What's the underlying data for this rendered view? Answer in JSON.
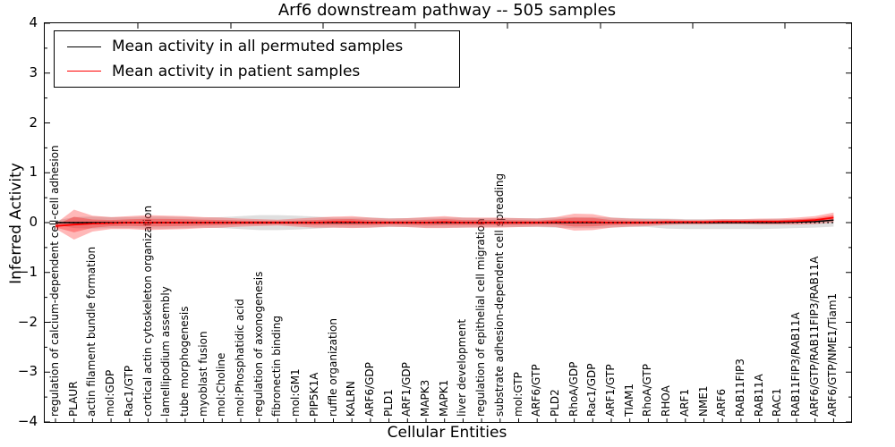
{
  "title": "Arf6 downstream pathway -- 505 samples",
  "axes": {
    "x_label": "Cellular Entities",
    "y_label": "Inferred Activity",
    "y_ticks": [
      {
        "label": "4",
        "value": 4
      },
      {
        "label": "3",
        "value": 3
      },
      {
        "label": "2",
        "value": 2
      },
      {
        "label": "1",
        "value": 1
      },
      {
        "label": "0",
        "value": 0
      },
      {
        "label": "−1",
        "value": -1
      },
      {
        "label": "−2",
        "value": -2
      },
      {
        "label": "−3",
        "value": -3
      },
      {
        "label": "−4",
        "value": -4
      }
    ]
  },
  "legend": {
    "items": [
      {
        "label": "Mean activity in all permuted samples",
        "color": "#000000"
      },
      {
        "label": "Mean activity in patient samples",
        "color": "#ff0000"
      }
    ]
  },
  "colors": {
    "patient_line": "#ff0000",
    "patient_band": "#ff0000",
    "permuted_line": "#000000",
    "permuted_band": "#aaaaaa",
    "zero_line": "#000000"
  },
  "chart_data": {
    "type": "line",
    "title": "Arf6 downstream pathway -- 505 samples",
    "xlabel": "Cellular Entities",
    "ylabel": "Inferred Activity",
    "ylim": [
      -4,
      4
    ],
    "grid": false,
    "legend_position": "upper left",
    "zero_reference_line": "dotted",
    "categories": [
      "regulation of calcium-dependent cell-cell adhesion",
      "PLAUR",
      "actin filament bundle formation",
      "mol:GDP",
      "Rac1/GTP",
      "cortical actin cytoskeleton organization",
      "lamellipodium assembly",
      "tube morphogenesis",
      "myoblast fusion",
      "mol:Choline",
      "mol:Phosphatidic acid",
      "regulation of axonogenesis",
      "fibronectin binding",
      "mol:GM1",
      "PIP5K1A",
      "ruffle organization",
      "KALRN",
      "ARF6/GDP",
      "PLD1",
      "ARF1/GDP",
      "MAPK3",
      "MAPK1",
      "liver development",
      "regulation of epithelial cell migration",
      "substrate adhesion-dependent cell spreading",
      "mol:GTP",
      "ARF6/GTP",
      "PLD2",
      "RhoA/GDP",
      "Rac1/GDP",
      "ARF1/GTP",
      "TIAM1",
      "RhoA/GTP",
      "RHOA",
      "ARF1",
      "NME1",
      "ARF6",
      "RAB11FIP3",
      "RAB11A",
      "RAC1",
      "RAB11FIP3/RAB11A",
      "ARF6/GTP/RAB11FIP3/RAB11A",
      "ARF6/GTP/NME1/Tiam1"
    ],
    "series": [
      {
        "name": "Mean activity in all permuted samples",
        "color": "#000000",
        "values": [
          0,
          0,
          0,
          0,
          0,
          0,
          0,
          0,
          0,
          0,
          0,
          0,
          0,
          0,
          0,
          0,
          0,
          0,
          0,
          0,
          0,
          0,
          0,
          0,
          0,
          0,
          0,
          0,
          0,
          0,
          0,
          0,
          0,
          0,
          0,
          0,
          0,
          0,
          0,
          0,
          0.01,
          0.02,
          0.05
        ],
        "band_center": [
          0,
          0,
          0,
          0,
          0,
          0,
          0,
          0,
          0,
          0,
          0,
          0,
          0,
          0,
          0,
          0,
          0,
          0,
          0,
          0,
          0,
          0,
          0,
          0,
          0,
          0,
          0,
          0,
          0,
          0,
          0,
          0,
          0,
          -0.02,
          -0.03,
          -0.03,
          -0.03,
          -0.03,
          -0.03,
          -0.02,
          -0.02,
          -0.01,
          0
        ],
        "band_halfwidth": [
          0.04,
          0.11,
          0.12,
          0.11,
          0.11,
          0.12,
          0.12,
          0.11,
          0.1,
          0.11,
          0.13,
          0.15,
          0.15,
          0.14,
          0.12,
          0.1,
          0.1,
          0.1,
          0.09,
          0.09,
          0.1,
          0.1,
          0.1,
          0.09,
          0.09,
          0.09,
          0.09,
          0.1,
          0.11,
          0.11,
          0.1,
          0.09,
          0.09,
          0.1,
          0.1,
          0.1,
          0.1,
          0.1,
          0.1,
          0.1,
          0.09,
          0.09,
          0.08
        ]
      },
      {
        "name": "Mean activity in patient samples",
        "color": "#ff0000",
        "values": [
          -0.07,
          -0.04,
          -0.02,
          -0.01,
          0,
          0,
          0,
          0,
          0,
          0,
          0,
          0,
          0,
          0,
          0,
          0.01,
          0.01,
          0,
          0,
          0,
          0,
          0.01,
          0,
          0,
          0,
          0,
          0,
          0.01,
          0.01,
          0.01,
          0,
          0,
          0,
          0.01,
          0.01,
          0.01,
          0.02,
          0.02,
          0.02,
          0.02,
          0.03,
          0.05,
          0.1
        ],
        "band_center": [
          -0.07,
          -0.04,
          -0.02,
          -0.01,
          0,
          0,
          0,
          0,
          0,
          0,
          0,
          0,
          0,
          0,
          0,
          0.01,
          0.01,
          0,
          0,
          0,
          0,
          0.01,
          0,
          0,
          0,
          0,
          0,
          0.01,
          0.01,
          0.01,
          0,
          0,
          0,
          0.01,
          0.01,
          0.01,
          0.02,
          0.02,
          0.02,
          0.02,
          0.03,
          0.05,
          0.1
        ],
        "band_halfwidth": [
          0.05,
          0.3,
          0.16,
          0.12,
          0.13,
          0.15,
          0.14,
          0.13,
          0.11,
          0.1,
          0.08,
          0.07,
          0.06,
          0.08,
          0.1,
          0.11,
          0.12,
          0.1,
          0.08,
          0.09,
          0.11,
          0.12,
          0.1,
          0.1,
          0.1,
          0.09,
          0.08,
          0.1,
          0.17,
          0.16,
          0.1,
          0.08,
          0.07,
          0.06,
          0.05,
          0.05,
          0.05,
          0.05,
          0.06,
          0.06,
          0.07,
          0.08,
          0.1
        ]
      }
    ]
  }
}
